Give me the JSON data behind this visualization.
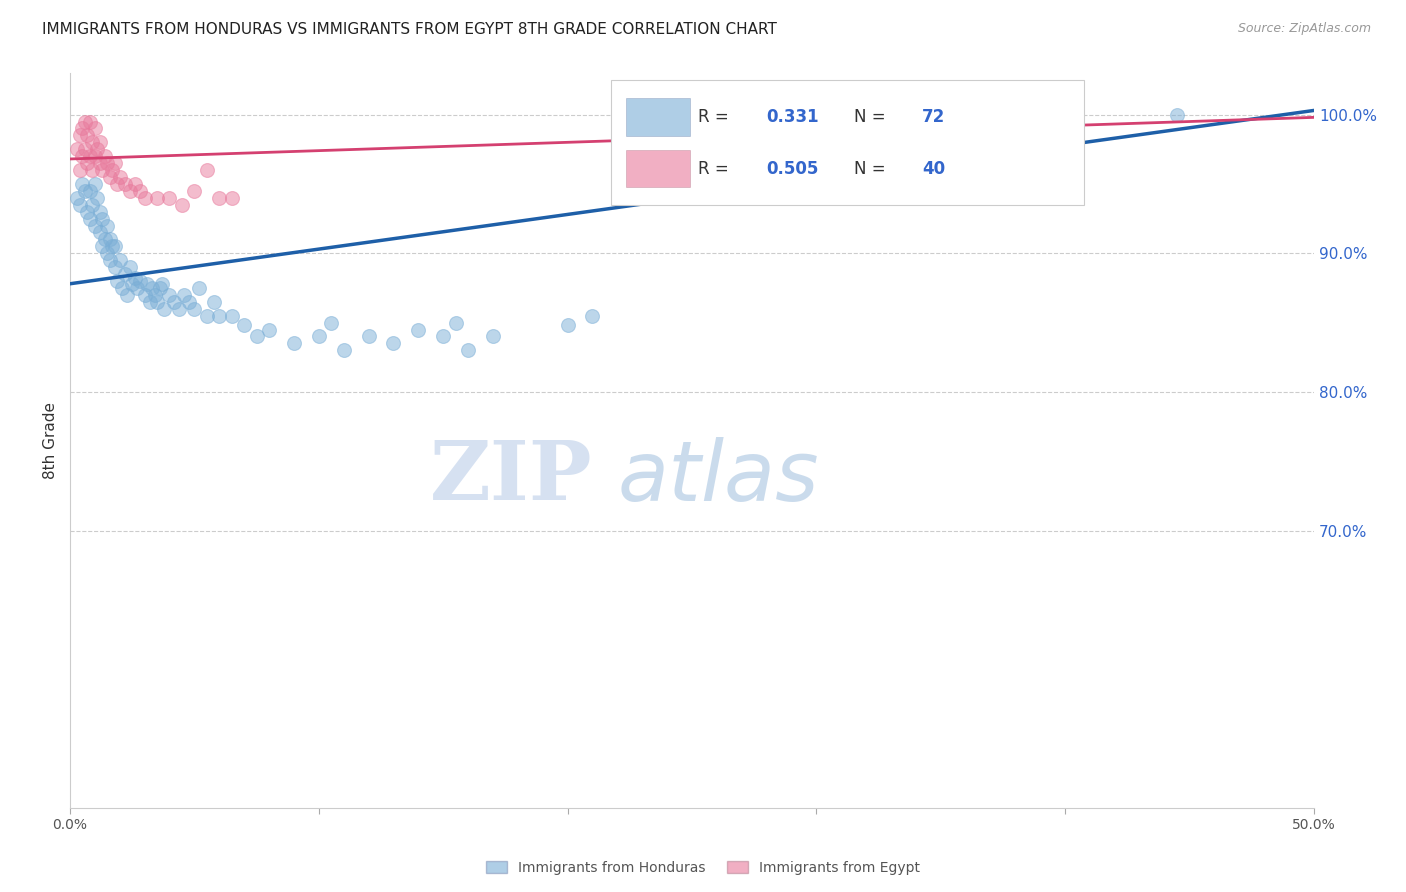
{
  "title": "IMMIGRANTS FROM HONDURAS VS IMMIGRANTS FROM EGYPT 8TH GRADE CORRELATION CHART",
  "source": "Source: ZipAtlas.com",
  "ylabel": "8th Grade",
  "xlim": [
    0.0,
    0.5
  ],
  "ylim": [
    0.5,
    1.03
  ],
  "ytick_positions": [
    0.7,
    0.8,
    0.9,
    1.0
  ],
  "ytick_labels": [
    "70.0%",
    "80.0%",
    "90.0%",
    "100.0%"
  ],
  "xtick_positions": [
    0.0,
    0.1,
    0.2,
    0.3,
    0.4,
    0.5
  ],
  "xtick_labels": [
    "0.0%",
    "",
    "",
    "",
    "",
    "50.0%"
  ],
  "blue_R": 0.331,
  "blue_N": 72,
  "pink_R": 0.505,
  "pink_N": 40,
  "blue_color": "#7aaed6",
  "pink_color": "#e87a9c",
  "line_blue": "#1e5fa8",
  "line_pink": "#d44070",
  "legend_label_blue": "Immigrants from Honduras",
  "legend_label_pink": "Immigrants from Egypt",
  "watermark_zip": "ZIP",
  "watermark_atlas": "atlas",
  "blue_line_x0": 0.0,
  "blue_line_y0": 0.878,
  "blue_line_x1": 0.5,
  "blue_line_y1": 1.003,
  "pink_line_x0": 0.0,
  "pink_line_y0": 0.968,
  "pink_line_x1": 0.5,
  "pink_line_y1": 0.998,
  "blue_x": [
    0.003,
    0.004,
    0.005,
    0.006,
    0.007,
    0.008,
    0.008,
    0.009,
    0.01,
    0.01,
    0.011,
    0.012,
    0.012,
    0.013,
    0.013,
    0.014,
    0.015,
    0.015,
    0.016,
    0.016,
    0.017,
    0.018,
    0.018,
    0.019,
    0.02,
    0.021,
    0.022,
    0.023,
    0.024,
    0.025,
    0.026,
    0.027,
    0.028,
    0.03,
    0.031,
    0.032,
    0.033,
    0.034,
    0.035,
    0.036,
    0.037,
    0.038,
    0.04,
    0.042,
    0.044,
    0.046,
    0.048,
    0.05,
    0.052,
    0.055,
    0.058,
    0.06,
    0.065,
    0.07,
    0.075,
    0.08,
    0.09,
    0.1,
    0.105,
    0.11,
    0.12,
    0.13,
    0.14,
    0.15,
    0.155,
    0.16,
    0.17,
    0.2,
    0.21,
    0.38,
    0.39,
    0.445
  ],
  "blue_y": [
    0.94,
    0.935,
    0.95,
    0.945,
    0.93,
    0.925,
    0.945,
    0.935,
    0.95,
    0.92,
    0.94,
    0.915,
    0.93,
    0.905,
    0.925,
    0.91,
    0.9,
    0.92,
    0.895,
    0.91,
    0.905,
    0.89,
    0.905,
    0.88,
    0.895,
    0.875,
    0.885,
    0.87,
    0.89,
    0.878,
    0.882,
    0.875,
    0.88,
    0.87,
    0.878,
    0.865,
    0.875,
    0.87,
    0.865,
    0.875,
    0.878,
    0.86,
    0.87,
    0.865,
    0.86,
    0.87,
    0.865,
    0.86,
    0.875,
    0.855,
    0.865,
    0.855,
    0.855,
    0.848,
    0.84,
    0.845,
    0.835,
    0.84,
    0.85,
    0.83,
    0.84,
    0.835,
    0.845,
    0.84,
    0.85,
    0.83,
    0.84,
    0.848,
    0.855,
    0.995,
    1.0,
    1.0
  ],
  "pink_x": [
    0.003,
    0.004,
    0.004,
    0.005,
    0.005,
    0.006,
    0.006,
    0.007,
    0.007,
    0.008,
    0.008,
    0.009,
    0.009,
    0.01,
    0.01,
    0.011,
    0.012,
    0.012,
    0.013,
    0.014,
    0.015,
    0.016,
    0.017,
    0.018,
    0.019,
    0.02,
    0.022,
    0.024,
    0.026,
    0.028,
    0.03,
    0.035,
    0.04,
    0.045,
    0.05,
    0.055,
    0.06,
    0.065,
    0.38,
    0.39
  ],
  "pink_y": [
    0.975,
    0.985,
    0.96,
    0.97,
    0.99,
    0.975,
    0.995,
    0.965,
    0.985,
    0.97,
    0.995,
    0.96,
    0.98,
    0.97,
    0.99,
    0.975,
    0.965,
    0.98,
    0.96,
    0.97,
    0.965,
    0.955,
    0.96,
    0.965,
    0.95,
    0.955,
    0.95,
    0.945,
    0.95,
    0.945,
    0.94,
    0.94,
    0.94,
    0.935,
    0.945,
    0.96,
    0.94,
    0.94,
    0.995,
    0.99
  ]
}
